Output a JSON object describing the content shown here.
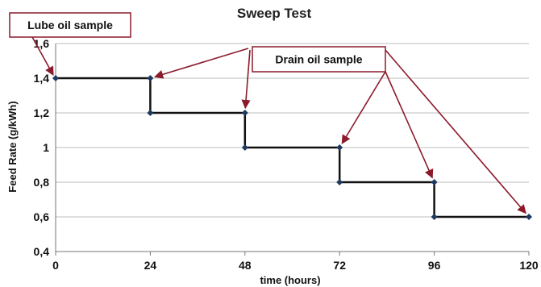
{
  "chart_data": {
    "type": "line",
    "title": "Sweep Test",
    "xlabel": "time (hours)",
    "ylabel": "Feed Rate (g/kWh)",
    "xlim": [
      0,
      120
    ],
    "ylim": [
      0.4,
      1.6
    ],
    "x_ticks": [
      "0",
      "24",
      "48",
      "72",
      "96",
      "120"
    ],
    "y_ticks": [
      "0,4",
      "0,6",
      "0,8",
      "1",
      "1,2",
      "1,4",
      "1,6"
    ],
    "grid": "horizontal",
    "step": true,
    "points": [
      {
        "x": 0,
        "y": 1.4
      },
      {
        "x": 24,
        "y": 1.4
      },
      {
        "x": 24,
        "y": 1.2
      },
      {
        "x": 48,
        "y": 1.2
      },
      {
        "x": 48,
        "y": 1.0
      },
      {
        "x": 72,
        "y": 1.0
      },
      {
        "x": 72,
        "y": 0.8
      },
      {
        "x": 96,
        "y": 0.8
      },
      {
        "x": 96,
        "y": 0.6
      },
      {
        "x": 120,
        "y": 0.6
      }
    ],
    "annotations": [
      {
        "label": "Lube oil sample",
        "targets": [
          {
            "x": 0,
            "y": 1.4
          }
        ]
      },
      {
        "label": "Drain oil sample",
        "targets": [
          {
            "x": 24,
            "y": 1.4
          },
          {
            "x": 48,
            "y": 1.2
          },
          {
            "x": 72,
            "y": 1.0
          },
          {
            "x": 96,
            "y": 0.8
          },
          {
            "x": 120,
            "y": 0.6
          }
        ]
      }
    ],
    "colors": {
      "line": "#111111",
      "marker": "#1f3a5f",
      "callout": "#8b1a2b",
      "grid": "#bdbdbd"
    }
  }
}
